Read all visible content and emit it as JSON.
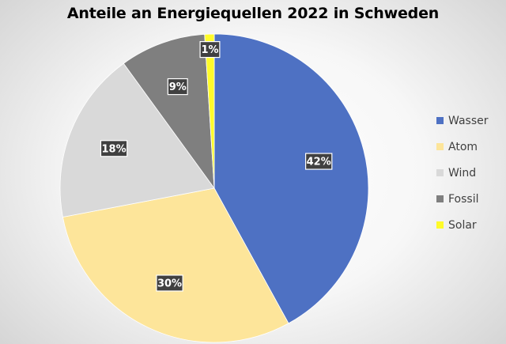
{
  "chart_data": {
    "type": "pie",
    "title": "Anteile an Energiequellen 2022 in Schweden",
    "categories": [
      "Wasser",
      "Atom",
      "Wind",
      "Fossil",
      "Solar"
    ],
    "values": [
      42,
      30,
      18,
      9,
      1
    ],
    "data_labels": [
      "42%",
      "30%",
      "18%",
      "9%",
      "1%"
    ],
    "colors": [
      "#4e71c3",
      "#fde59a",
      "#d9d9d9",
      "#7f7f7f",
      "#fffb2a"
    ],
    "start_angle": "12 o'clock",
    "direction": "clockwise",
    "legend_position": "right"
  }
}
